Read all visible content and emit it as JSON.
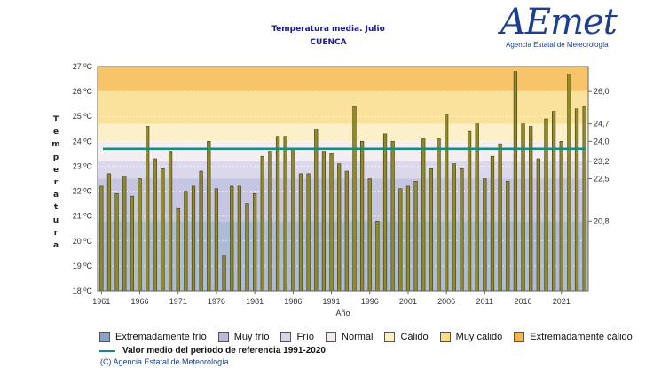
{
  "header": {
    "title": "Temperatura media. Julio",
    "subtitle": "CUENCA"
  },
  "logo": {
    "brand": "AEmet",
    "agency": "Agencia Estatal de Meteorología"
  },
  "axis_title_vertical": [
    "T",
    "e",
    "m",
    "p",
    "e",
    "r",
    "a",
    "t",
    "u",
    "r",
    "a"
  ],
  "legend": {
    "items": [
      {
        "label": "Extremadamente frío",
        "color": "#8aa2c8"
      },
      {
        "label": "Muy frío",
        "color": "#b9b9dc"
      },
      {
        "label": "Frío",
        "color": "#d9d4ea"
      },
      {
        "label": "Normal",
        "color": "#f3eaf0"
      },
      {
        "label": "Cálido",
        "color": "#fbf0c4"
      },
      {
        "label": "Muy cálido",
        "color": "#fadc8a"
      },
      {
        "label": "Extremadamente cálido",
        "color": "#f6b352"
      }
    ],
    "reference_label": "Valor medio del periodo de referencia 1991-2020",
    "reference_color": "#1a8a7a"
  },
  "copyright": "(C) Agencia Estatal de Meteorología",
  "chart_data": {
    "type": "bar",
    "xlabel": "Año",
    "ylabel": "Temperatura",
    "ylim": [
      18,
      27
    ],
    "yticks": [
      "18 ºC",
      "19 ºC",
      "20 ºC",
      "21 ºC",
      "22 ºC",
      "23 ºC",
      "24 ºC",
      "25 ºC",
      "26 ºC",
      "27 ºC"
    ],
    "xticks": [
      "1961",
      "1966",
      "1971",
      "1976",
      "1981",
      "1986",
      "1991",
      "1996",
      "2001",
      "2006",
      "2011",
      "2016",
      "2021"
    ],
    "right_ticks": [
      {
        "value": 26.0,
        "label": "26,0"
      },
      {
        "value": 24.7,
        "label": "24,7"
      },
      {
        "value": 24.0,
        "label": "24,0"
      },
      {
        "value": 23.2,
        "label": "23,2"
      },
      {
        "value": 22.5,
        "label": "22,5"
      },
      {
        "value": 20.8,
        "label": "20,8"
      }
    ],
    "reference_value": 23.7,
    "bands": [
      {
        "from": 18.0,
        "to": 20.8,
        "color": "#aebbd6"
      },
      {
        "from": 20.8,
        "to": 22.5,
        "color": "#c6c6e2"
      },
      {
        "from": 22.5,
        "to": 23.2,
        "color": "#dcd8ec"
      },
      {
        "from": 23.2,
        "to": 24.0,
        "color": "#f4edf1"
      },
      {
        "from": 24.0,
        "to": 24.7,
        "color": "#fbf0c8"
      },
      {
        "from": 24.7,
        "to": 26.0,
        "color": "#fbe29c"
      },
      {
        "from": 26.0,
        "to": 27.0,
        "color": "#f8c46a"
      }
    ],
    "years": [
      1961,
      1962,
      1963,
      1964,
      1965,
      1966,
      1967,
      1968,
      1969,
      1970,
      1971,
      1972,
      1973,
      1974,
      1975,
      1976,
      1977,
      1978,
      1979,
      1980,
      1981,
      1982,
      1983,
      1984,
      1985,
      1986,
      1987,
      1988,
      1989,
      1990,
      1991,
      1992,
      1993,
      1994,
      1995,
      1996,
      1997,
      1998,
      1999,
      2000,
      2001,
      2002,
      2003,
      2004,
      2005,
      2006,
      2007,
      2008,
      2009,
      2010,
      2011,
      2012,
      2013,
      2014,
      2015,
      2016,
      2017,
      2018,
      2019,
      2020,
      2021,
      2022,
      2023,
      2024
    ],
    "values": [
      22.2,
      22.7,
      21.9,
      22.6,
      21.8,
      22.5,
      24.6,
      23.3,
      22.9,
      23.6,
      21.3,
      22.0,
      22.2,
      22.8,
      24.0,
      22.1,
      19.4,
      22.2,
      22.2,
      21.5,
      21.9,
      23.4,
      23.6,
      24.2,
      24.2,
      23.7,
      22.7,
      22.7,
      24.5,
      23.6,
      23.5,
      23.1,
      22.8,
      25.4,
      24.0,
      22.5,
      20.8,
      24.3,
      24.0,
      22.1,
      22.2,
      22.4,
      24.1,
      22.9,
      24.1,
      25.1,
      23.1,
      22.9,
      24.4,
      24.7,
      22.5,
      23.4,
      23.9,
      22.4,
      26.8,
      24.7,
      24.6,
      23.3,
      24.9,
      25.2,
      24.0,
      26.7,
      25.3,
      25.4
    ]
  }
}
